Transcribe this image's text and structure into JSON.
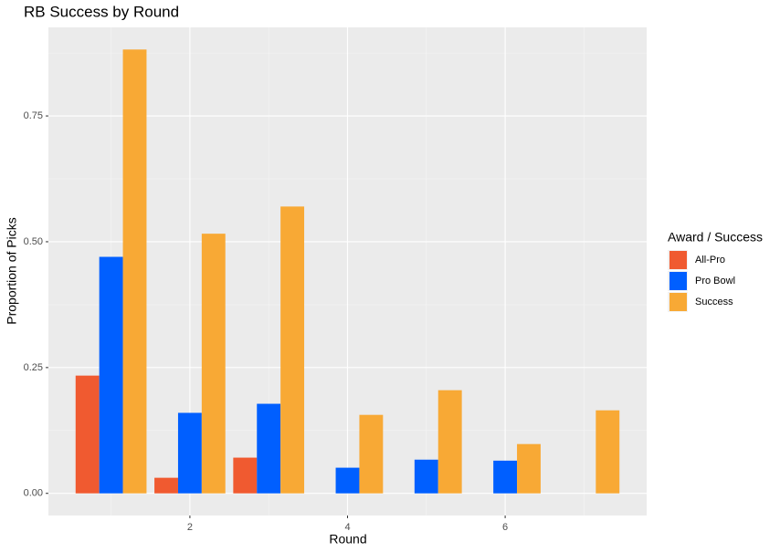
{
  "chart_data": {
    "type": "bar",
    "title": "RB Success by Round",
    "x_label": "Round",
    "y_label": "Proportion of Picks",
    "legend_title": "Award / Success",
    "legend_position": "right",
    "x": [
      1,
      2,
      3,
      4,
      5,
      6,
      7
    ],
    "series": [
      {
        "name": "All-Pro",
        "color": "#f05a30",
        "values": [
          0.234,
          0.031,
          0.071,
          0,
          0,
          0,
          0
        ]
      },
      {
        "name": "Pro Bowl",
        "color": "#005fff",
        "values": [
          0.47,
          0.16,
          0.178,
          0.051,
          0.067,
          0.065,
          0
        ]
      },
      {
        "name": "Success",
        "color": "#f8a935",
        "values": [
          0.882,
          0.516,
          0.57,
          0.156,
          0.205,
          0.098,
          0.165
        ]
      }
    ],
    "xlim": [
      0.205,
      7.795
    ],
    "xticks": [
      2,
      4,
      6
    ],
    "ylim": [
      -0.044,
      0.926
    ],
    "yticks": [
      {
        "value": 0,
        "label": "0.00"
      },
      {
        "value": 0.25,
        "label": "0.25"
      },
      {
        "value": 0.5,
        "label": "0.50"
      },
      {
        "value": 0.75,
        "label": "0.75"
      }
    ],
    "grid": true
  }
}
